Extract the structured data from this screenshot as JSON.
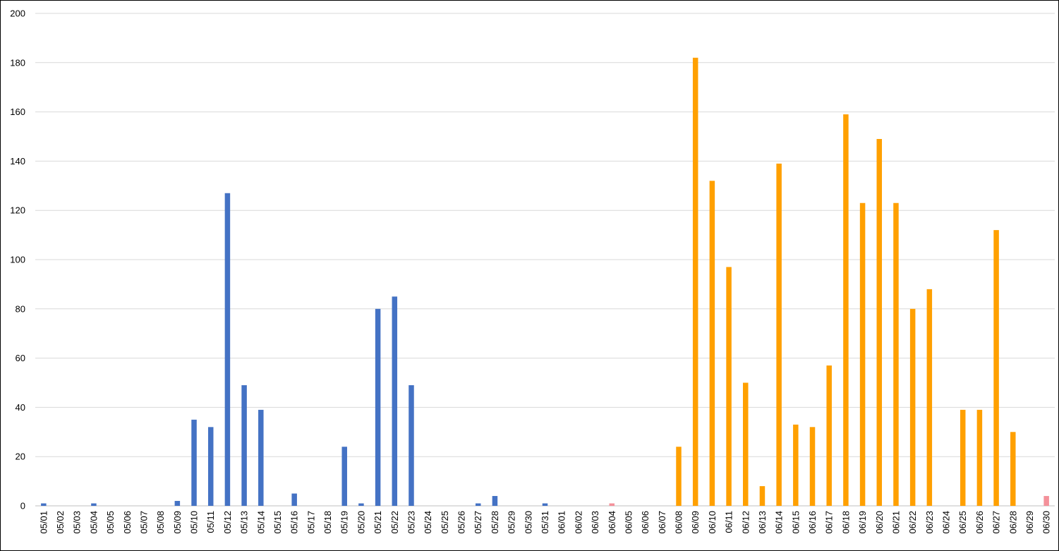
{
  "chart_data": {
    "type": "bar",
    "title": "",
    "xlabel": "",
    "ylabel": "",
    "ylim": [
      0,
      200
    ],
    "yticks": [
      0,
      20,
      40,
      60,
      80,
      100,
      120,
      140,
      160,
      180,
      200
    ],
    "grid": true,
    "legend": "none",
    "colors": {
      "blue": "#4472C4",
      "orange": "#FFA000",
      "pink": "#F4919A",
      "grid": "#D9D9D9"
    },
    "categories": [
      "05/01",
      "05/02",
      "05/03",
      "05/04",
      "05/05",
      "05/06",
      "05/07",
      "05/08",
      "05/09",
      "05/10",
      "05/11",
      "05/12",
      "05/13",
      "05/14",
      "05/15",
      "05/16",
      "05/17",
      "05/18",
      "05/19",
      "05/20",
      "05/21",
      "05/22",
      "05/23",
      "05/24",
      "05/25",
      "05/26",
      "05/27",
      "05/28",
      "05/29",
      "05/30",
      "05/31",
      "06/01",
      "06/02",
      "06/03",
      "06/04",
      "06/05",
      "06/06",
      "06/07",
      "06/08",
      "06/09",
      "06/10",
      "06/11",
      "06/12",
      "06/13",
      "06/14",
      "06/15",
      "06/16",
      "06/17",
      "06/18",
      "06/19",
      "06/20",
      "06/21",
      "06/22",
      "06/23",
      "06/24",
      "06/25",
      "06/26",
      "06/27",
      "06/28",
      "06/29",
      "06/30"
    ],
    "values": [
      1,
      0,
      0,
      1,
      0,
      0,
      0,
      0,
      2,
      35,
      32,
      127,
      49,
      39,
      0,
      5,
      0,
      0,
      24,
      1,
      80,
      85,
      49,
      0,
      0,
      0,
      1,
      4,
      0,
      0,
      1,
      0,
      0,
      0,
      1,
      0,
      0,
      0,
      24,
      182,
      132,
      97,
      50,
      8,
      139,
      33,
      32,
      57,
      159,
      123,
      149,
      123,
      80,
      88,
      0,
      39,
      39,
      112,
      30,
      0,
      4
    ],
    "bar_colors": [
      "blue",
      "blue",
      "blue",
      "blue",
      "blue",
      "blue",
      "blue",
      "blue",
      "blue",
      "blue",
      "blue",
      "blue",
      "blue",
      "blue",
      "blue",
      "blue",
      "blue",
      "blue",
      "blue",
      "blue",
      "blue",
      "blue",
      "blue",
      "blue",
      "blue",
      "blue",
      "blue",
      "blue",
      "blue",
      "blue",
      "blue",
      "blue",
      "blue",
      "blue",
      "pink",
      "orange",
      "orange",
      "orange",
      "orange",
      "orange",
      "orange",
      "orange",
      "orange",
      "orange",
      "orange",
      "orange",
      "orange",
      "orange",
      "orange",
      "orange",
      "orange",
      "orange",
      "orange",
      "orange",
      "orange",
      "orange",
      "orange",
      "orange",
      "orange",
      "orange",
      "pink"
    ]
  }
}
